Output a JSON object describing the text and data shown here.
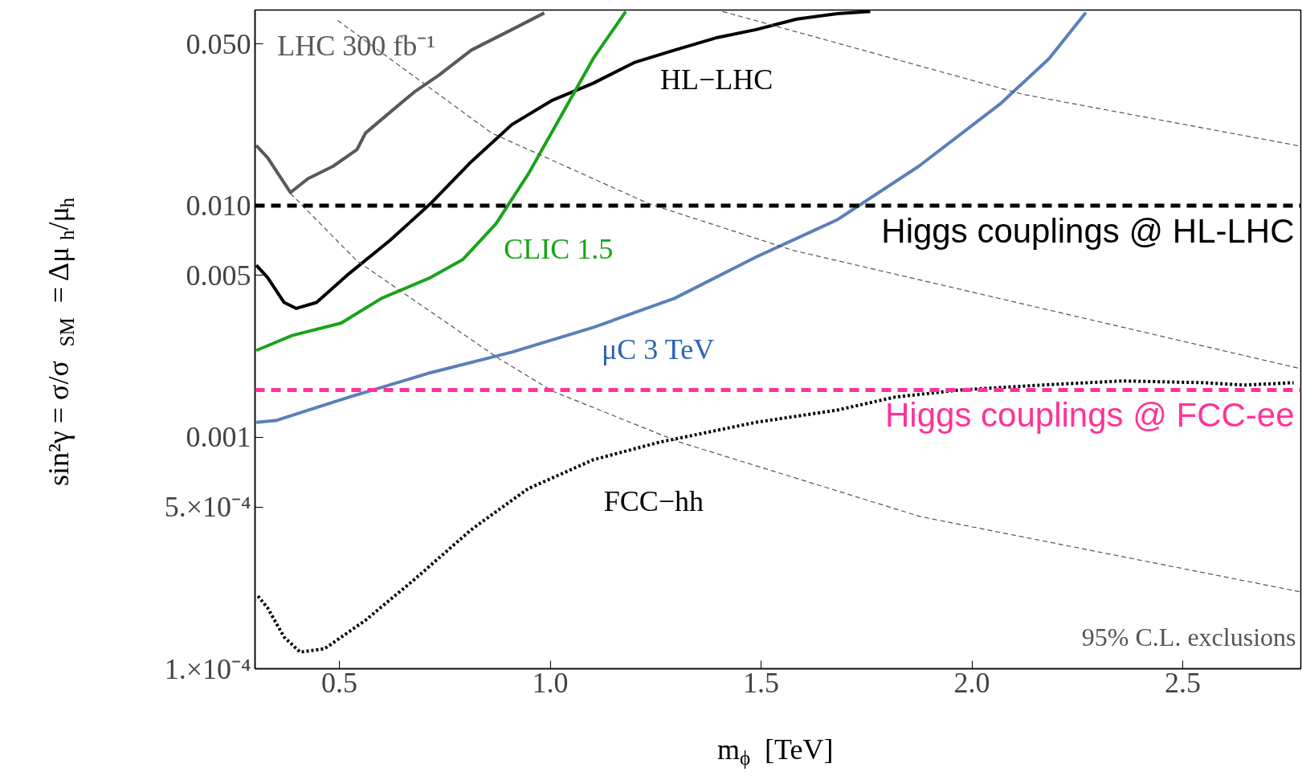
{
  "chart_data": {
    "type": "line",
    "xlabel": "m$_{ϕ}$  [TeV]",
    "ylabel": "sin²γ  =  σ/σ$_{SM}$  =  Δμ$_{h}$/μ$_{h}$",
    "log": "y",
    "grid": false,
    "xlim": [
      0.3,
      2.78
    ],
    "ylim": [
      0.0001,
      0.07
    ],
    "xticks": [
      0.5,
      {
        "value": 1.0,
        "label": "1.0"
      },
      1.5,
      {
        "value": 2.0,
        "label": "2.0"
      },
      2.5
    ],
    "yticks": [
      {
        "value": 0.0001,
        "label": "1.×10⁻⁴"
      },
      {
        "value": 0.0005,
        "label": "5.×10⁻⁴"
      },
      0.001,
      0.005,
      {
        "value": 0.01,
        "label": "0.010"
      },
      {
        "value": 0.05,
        "label": "0.050"
      }
    ],
    "series": [
      {
        "name": "LHC 300 fb⁻¹",
        "color": "#595959",
        "line_style": "solid",
        "x": [
          0.303,
          0.33,
          0.384,
          0.426,
          0.485,
          0.542,
          0.562,
          0.62,
          0.678,
          0.736,
          0.813,
          0.909,
          0.986
        ],
        "values": [
          0.0182,
          0.0161,
          0.0114,
          0.0131,
          0.0148,
          0.0175,
          0.0206,
          0.0253,
          0.031,
          0.0366,
          0.047,
          0.0576,
          0.068
        ]
      },
      {
        "name": "HL−LHC",
        "color": "#000000",
        "line_style": "solid",
        "x": [
          0.303,
          0.33,
          0.369,
          0.398,
          0.446,
          0.523,
          0.62,
          0.716,
          0.813,
          0.909,
          1.006,
          1.102,
          1.199,
          1.295,
          1.392,
          1.488,
          1.585,
          1.681,
          1.759
        ],
        "values": [
          0.00553,
          0.00489,
          0.00382,
          0.0036,
          0.00382,
          0.00509,
          0.00708,
          0.0102,
          0.0155,
          0.0224,
          0.0286,
          0.0338,
          0.0415,
          0.047,
          0.053,
          0.0576,
          0.064,
          0.0675,
          0.069
        ]
      },
      {
        "name": "CLIC 1.5",
        "color": "#1aa31a",
        "line_style": "solid",
        "x": [
          0.303,
          0.388,
          0.504,
          0.6,
          0.716,
          0.793,
          0.871,
          0.948,
          1.025,
          1.102,
          1.179
        ],
        "values": [
          0.00237,
          0.00275,
          0.00311,
          0.00398,
          0.00489,
          0.00586,
          0.00834,
          0.0137,
          0.0243,
          0.0432,
          0.069
        ]
      },
      {
        "name": "μC 3 TeV",
        "color": "#5b80b8",
        "line_style": "solid",
        "x": [
          0.303,
          0.349,
          0.523,
          0.716,
          0.909,
          1.102,
          1.295,
          1.488,
          1.681,
          1.874,
          2.067,
          2.183,
          2.27
        ],
        "values": [
          0.00116,
          0.00118,
          0.00149,
          0.0019,
          0.00233,
          0.00298,
          0.00398,
          0.006,
          0.0087,
          0.0148,
          0.0275,
          0.0432,
          0.0682
        ]
      },
      {
        "name": "FCC−hh",
        "color": "#000000",
        "line_style": "dotted",
        "x": [
          0.307,
          0.33,
          0.369,
          0.407,
          0.465,
          0.562,
          0.678,
          0.813,
          0.948,
          1.102,
          1.257,
          1.488,
          1.681,
          1.817,
          1.971,
          2.164,
          2.357,
          2.55,
          2.647,
          2.763
        ],
        "values": [
          0.000206,
          0.000183,
          0.000137,
          0.000118,
          0.000122,
          0.000162,
          0.000243,
          0.000399,
          0.0006,
          0.000799,
          0.00095,
          0.00116,
          0.00131,
          0.00149,
          0.0016,
          0.00168,
          0.00175,
          0.00172,
          0.00168,
          0.00172
        ]
      },
      {
        "color": "#555555",
        "line_style": "dashed",
        "x": [
          0.496,
          0.861,
          1.234,
          1.575,
          2.778
        ],
        "values": [
          0.0631,
          0.0206,
          0.0102,
          0.00642,
          0.00198
        ]
      },
      {
        "color": "#555555",
        "line_style": "dashed",
        "x": [
          1.409,
          2.12,
          2.778
        ],
        "values": [
          0.069,
          0.0303,
          0.0181
        ]
      },
      {
        "color": "#555555",
        "line_style": "dashed",
        "x": [
          0.384,
          0.542,
          0.876,
          1.006,
          1.307,
          1.878,
          2.778
        ],
        "values": [
          0.0113,
          0.00577,
          0.0022,
          0.00158,
          0.000952,
          0.000454,
          0.000215
        ]
      }
    ],
    "ref_lines": [
      {
        "axis": "y",
        "value": 0.01,
        "label": "Higgs couplings @ HL-LHC",
        "color": "#000000",
        "line_style": "dashed"
      },
      {
        "axis": "y",
        "value": 0.0016,
        "label": "Higgs couplings @ FCC-ee",
        "color": "#ff3399",
        "line_style": "dashed"
      }
    ],
    "annotations": [
      "95% C.L. exclusions"
    ]
  }
}
